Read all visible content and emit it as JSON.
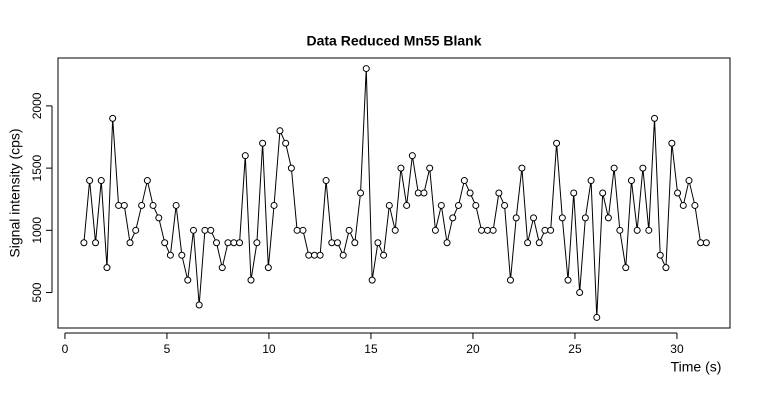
{
  "chart_data": {
    "type": "line",
    "title": "Data Reduced Mn55 Blank",
    "x_label": "Time (s)",
    "y_label": "Signal intensity (cps)",
    "x": [
      0.93,
      1.21,
      1.5,
      1.78,
      2.06,
      2.34,
      2.63,
      2.91,
      3.19,
      3.47,
      3.76,
      4.04,
      4.32,
      4.6,
      4.89,
      5.17,
      5.45,
      5.73,
      6.02,
      6.3,
      6.58,
      6.86,
      7.15,
      7.43,
      7.71,
      7.99,
      8.28,
      8.56,
      8.84,
      9.12,
      9.41,
      9.69,
      9.97,
      10.25,
      10.54,
      10.82,
      11.1,
      11.38,
      11.67,
      11.95,
      12.23,
      12.51,
      12.8,
      13.08,
      13.36,
      13.64,
      13.93,
      14.21,
      14.49,
      14.77,
      15.06,
      15.34,
      15.62,
      15.9,
      16.19,
      16.47,
      16.75,
      17.03,
      17.32,
      17.6,
      17.88,
      18.16,
      18.45,
      18.73,
      19.01,
      19.29,
      19.58,
      19.86,
      20.14,
      20.42,
      20.71,
      20.99,
      21.27,
      21.55,
      21.84,
      22.12,
      22.4,
      22.68,
      22.97,
      23.25,
      23.53,
      23.81,
      24.1,
      24.38,
      24.66,
      24.94,
      25.23,
      25.51,
      25.79,
      26.07,
      26.36,
      26.64,
      26.92,
      27.2,
      27.49,
      27.77,
      28.05,
      28.33,
      28.62,
      28.9,
      29.18,
      29.46,
      29.75,
      30.03,
      30.31,
      30.59,
      30.88,
      31.16,
      31.44
    ],
    "values": [
      900,
      1400,
      900,
      1400,
      700,
      1900,
      1200,
      1200,
      900,
      1000,
      1200,
      1400,
      1200,
      1100,
      900,
      800,
      1200,
      800,
      600,
      1000,
      400,
      1000,
      1000,
      900,
      700,
      900,
      900,
      900,
      1600,
      600,
      900,
      1700,
      700,
      1200,
      1800,
      1700,
      1500,
      1000,
      1000,
      800,
      800,
      800,
      1400,
      900,
      900,
      800,
      1000,
      900,
      1300,
      2300,
      600,
      900,
      800,
      1200,
      1000,
      1500,
      1200,
      1600,
      1300,
      1300,
      1500,
      1000,
      1200,
      900,
      1100,
      1200,
      1400,
      1300,
      1200,
      1000,
      1000,
      1000,
      1300,
      1200,
      600,
      1100,
      1500,
      900,
      1100,
      900,
      1000,
      1000,
      1700,
      1100,
      600,
      1300,
      500,
      1100,
      1400,
      300,
      1300,
      1100,
      1500,
      1000,
      700,
      1400,
      1000,
      1500,
      1000,
      1900,
      800,
      700,
      1700,
      1300,
      1200,
      1400,
      1200,
      900,
      900
    ],
    "color": "#000000",
    "xlim": [
      -0.34,
      32.6
    ],
    "xticks": [
      0,
      5,
      10,
      15,
      20,
      25,
      30
    ],
    "ylim": [
      215,
      2385
    ],
    "yticks": [
      500,
      1000,
      1500,
      2000
    ]
  }
}
